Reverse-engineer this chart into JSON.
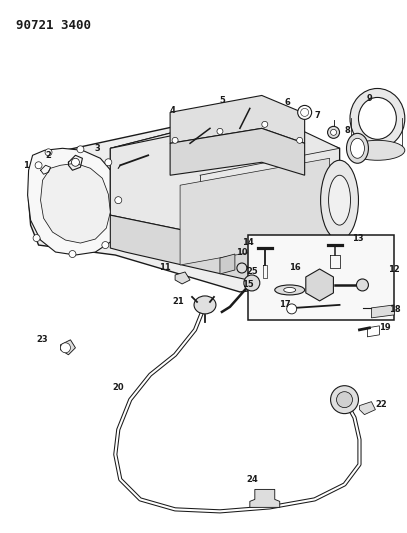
{
  "title": "90721 3400",
  "bg_color": "#ffffff",
  "lc": "#1a1a1a",
  "fig_width": 4.07,
  "fig_height": 5.33,
  "dpi": 100
}
